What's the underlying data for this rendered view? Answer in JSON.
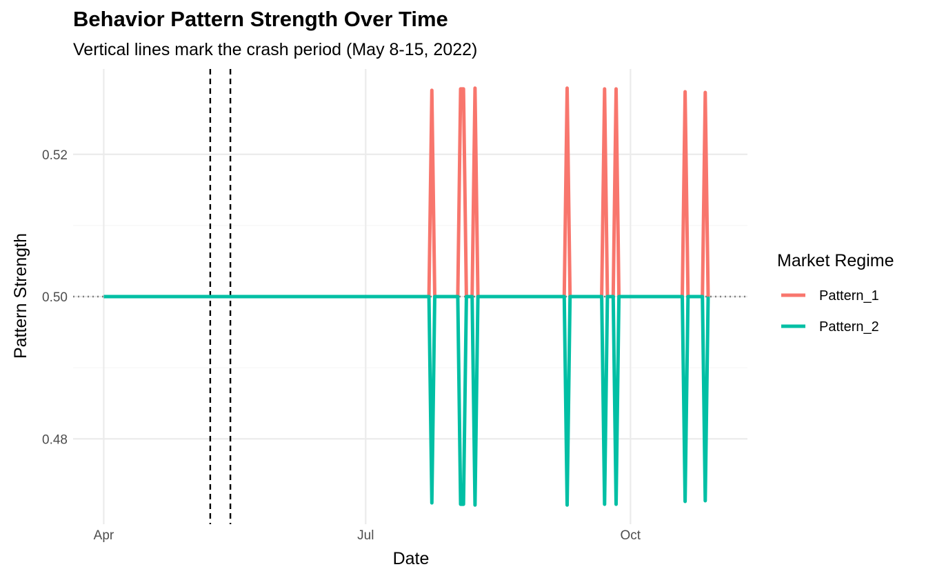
{
  "chart_data": {
    "type": "line",
    "title": "Behavior Pattern Strength Over Time",
    "subtitle": "Vertical lines mark the crash period (May 8-15, 2022)",
    "xlabel": "Date",
    "ylabel": "Pattern Strength",
    "x_tick_labels": [
      "Apr",
      "Jul",
      "Oct"
    ],
    "x_ticks": [
      "2022-04-01",
      "2022-07-01",
      "2022-10-01"
    ],
    "xlim": [
      "2022-04-01",
      "2022-10-31"
    ],
    "y_tick_labels": [
      "0.48",
      "0.50",
      "0.52"
    ],
    "y_ticks": [
      0.48,
      0.5,
      0.52
    ],
    "ylim": [
      0.468,
      0.532
    ],
    "grid": true,
    "reference_hline": 0.5,
    "crash_period": [
      "2022-05-08",
      "2022-05-15"
    ],
    "legend_title": "Market Regime",
    "legend_position": "right",
    "series": [
      {
        "name": "Pattern_1",
        "color": "#F8766D",
        "points": [
          [
            "2022-04-01",
            0.5
          ],
          [
            "2022-07-23",
            0.5
          ],
          [
            "2022-07-24",
            0.529
          ],
          [
            "2022-07-25",
            0.5
          ],
          [
            "2022-08-02",
            0.5
          ],
          [
            "2022-08-03",
            0.5292
          ],
          [
            "2022-08-04",
            0.5292
          ],
          [
            "2022-08-05",
            0.5
          ],
          [
            "2022-08-07",
            0.5
          ],
          [
            "2022-08-08",
            0.5293
          ],
          [
            "2022-08-09",
            0.5
          ],
          [
            "2022-09-08",
            0.5
          ],
          [
            "2022-09-09",
            0.5293
          ],
          [
            "2022-09-10",
            0.5
          ],
          [
            "2022-09-21",
            0.5
          ],
          [
            "2022-09-22",
            0.5292
          ],
          [
            "2022-09-23",
            0.5
          ],
          [
            "2022-09-25",
            0.5
          ],
          [
            "2022-09-26",
            0.5292
          ],
          [
            "2022-09-27",
            0.5
          ],
          [
            "2022-10-19",
            0.5
          ],
          [
            "2022-10-20",
            0.5288
          ],
          [
            "2022-10-21",
            0.5
          ],
          [
            "2022-10-26",
            0.5
          ],
          [
            "2022-10-27",
            0.5287
          ],
          [
            "2022-10-28",
            0.5
          ]
        ]
      },
      {
        "name": "Pattern_2",
        "color": "#00BFA4",
        "points": [
          [
            "2022-04-01",
            0.5
          ],
          [
            "2022-07-23",
            0.5
          ],
          [
            "2022-07-24",
            0.471
          ],
          [
            "2022-07-25",
            0.5
          ],
          [
            "2022-08-02",
            0.5
          ],
          [
            "2022-08-03",
            0.4708
          ],
          [
            "2022-08-04",
            0.4708
          ],
          [
            "2022-08-05",
            0.5
          ],
          [
            "2022-08-07",
            0.5
          ],
          [
            "2022-08-08",
            0.4707
          ],
          [
            "2022-08-09",
            0.5
          ],
          [
            "2022-09-08",
            0.5
          ],
          [
            "2022-09-09",
            0.4707
          ],
          [
            "2022-09-10",
            0.5
          ],
          [
            "2022-09-21",
            0.5
          ],
          [
            "2022-09-22",
            0.4708
          ],
          [
            "2022-09-23",
            0.5
          ],
          [
            "2022-09-25",
            0.5
          ],
          [
            "2022-09-26",
            0.4708
          ],
          [
            "2022-09-27",
            0.5
          ],
          [
            "2022-10-19",
            0.5
          ],
          [
            "2022-10-20",
            0.4712
          ],
          [
            "2022-10-21",
            0.5
          ],
          [
            "2022-10-26",
            0.5
          ],
          [
            "2022-10-27",
            0.4713
          ],
          [
            "2022-10-28",
            0.5
          ]
        ]
      }
    ]
  }
}
